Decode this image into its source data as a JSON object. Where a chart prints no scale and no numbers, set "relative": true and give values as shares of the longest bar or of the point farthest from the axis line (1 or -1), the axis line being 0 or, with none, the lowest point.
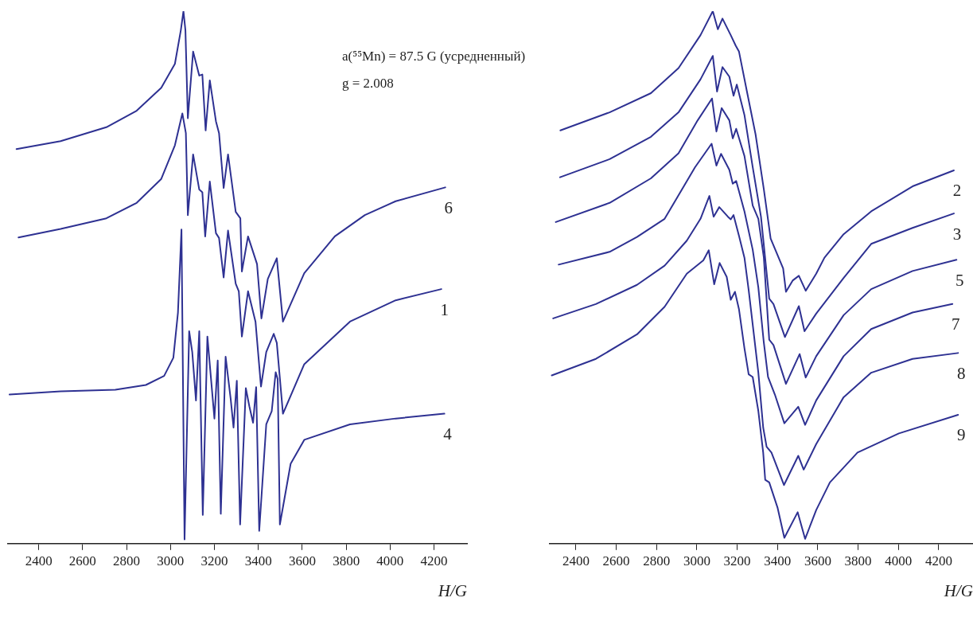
{
  "chart_data": [
    {
      "type": "line",
      "relative": true,
      "xlabel": "H/G",
      "xlim": [
        2260,
        4350
      ],
      "xticks": [
        2400,
        2600,
        2800,
        3000,
        3200,
        3400,
        3600,
        3800,
        4000,
        4200
      ],
      "annotations": [
        "a(⁵⁵Mn) = 87.5 G (усредненный)",
        "g = 2.008"
      ],
      "series": [
        {
          "name": "6",
          "color": "#2e3192",
          "x": [
            2299,
            2500,
            2708,
            2846,
            2958,
            3020,
            3047,
            3059,
            3068,
            3079,
            3103,
            3131,
            3145,
            3160,
            3179,
            3207,
            3221,
            3242,
            3262,
            3297,
            3318,
            3325,
            3353,
            3394,
            3414,
            3443,
            3484,
            3512,
            3609,
            3748,
            3885,
            4025,
            4251
          ],
          "values": [
            0.741,
            0.756,
            0.782,
            0.813,
            0.856,
            0.901,
            0.964,
            1,
            0.964,
            0.799,
            0.924,
            0.879,
            0.881,
            0.776,
            0.87,
            0.793,
            0.771,
            0.668,
            0.731,
            0.623,
            0.611,
            0.511,
            0.577,
            0.525,
            0.423,
            0.497,
            0.536,
            0.417,
            0.508,
            0.577,
            0.617,
            0.643,
            0.669
          ]
        },
        {
          "name": "1",
          "color": "#2e3192",
          "x": [
            2308,
            2500,
            2708,
            2846,
            2958,
            3020,
            3054,
            3070,
            3079,
            3103,
            3131,
            3145,
            3158,
            3179,
            3207,
            3221,
            3242,
            3262,
            3297,
            3311,
            3325,
            3353,
            3387,
            3412,
            3436,
            3470,
            3484,
            3512,
            3609,
            3817,
            4025,
            4233
          ],
          "values": [
            0.575,
            0.591,
            0.611,
            0.64,
            0.685,
            0.748,
            0.808,
            0.771,
            0.617,
            0.731,
            0.665,
            0.66,
            0.577,
            0.68,
            0.583,
            0.574,
            0.5,
            0.588,
            0.488,
            0.474,
            0.389,
            0.474,
            0.417,
            0.295,
            0.36,
            0.394,
            0.377,
            0.244,
            0.337,
            0.417,
            0.457,
            0.478
          ]
        },
        {
          "name": "4",
          "color": "#2e3192",
          "x": [
            2267,
            2500,
            2749,
            2888,
            2971,
            3013,
            3034,
            3050,
            3064,
            3085,
            3099,
            3116,
            3131,
            3147,
            3168,
            3200,
            3215,
            3229,
            3251,
            3274,
            3287,
            3302,
            3317,
            3343,
            3359,
            3376,
            3390,
            3404,
            3436,
            3461,
            3479,
            3488,
            3498,
            3547,
            3609,
            3817,
            4025,
            4247
          ],
          "values": [
            0.28,
            0.286,
            0.289,
            0.298,
            0.315,
            0.349,
            0.434,
            0.59,
            0.008,
            0.399,
            0.36,
            0.269,
            0.399,
            0.054,
            0.389,
            0.235,
            0.344,
            0.056,
            0.351,
            0.272,
            0.218,
            0.306,
            0.036,
            0.292,
            0.258,
            0.227,
            0.294,
            0.024,
            0.224,
            0.249,
            0.322,
            0.309,
            0.036,
            0.15,
            0.195,
            0.224,
            0.235,
            0.244
          ]
        }
      ]
    },
    {
      "type": "line",
      "relative": true,
      "xlabel": "H/G",
      "xlim": [
        2270,
        4370
      ],
      "xticks": [
        2400,
        2600,
        2800,
        3000,
        3200,
        3400,
        3600,
        3800,
        4000,
        4200
      ],
      "series": [
        {
          "name": "2",
          "color": "#2e3192",
          "x": [
            2323,
            2567,
            2772,
            2909,
            3018,
            3079,
            3104,
            3127,
            3168,
            3193,
            3209,
            3250,
            3291,
            3332,
            3366,
            3428,
            3442,
            3475,
            3506,
            3540,
            3592,
            3633,
            3728,
            3865,
            4070,
            4275
          ],
          "values": [
            0.776,
            0.81,
            0.846,
            0.893,
            0.955,
            1,
            0.966,
            0.986,
            0.955,
            0.935,
            0.924,
            0.846,
            0.769,
            0.666,
            0.573,
            0.517,
            0.473,
            0.494,
            0.503,
            0.475,
            0.507,
            0.537,
            0.581,
            0.624,
            0.671,
            0.701
          ]
        },
        {
          "name": "3",
          "color": "#2e3192",
          "x": [
            2321,
            2567,
            2772,
            2909,
            3018,
            3079,
            3100,
            3127,
            3161,
            3182,
            3198,
            3236,
            3277,
            3318,
            3359,
            3380,
            3437,
            3506,
            3534,
            3592,
            3728,
            3865,
            4070,
            4275
          ],
          "values": [
            0.688,
            0.722,
            0.764,
            0.81,
            0.872,
            0.916,
            0.849,
            0.895,
            0.877,
            0.841,
            0.862,
            0.805,
            0.707,
            0.614,
            0.46,
            0.45,
            0.388,
            0.446,
            0.399,
            0.432,
            0.499,
            0.563,
            0.593,
            0.62
          ]
        },
        {
          "name": "5",
          "color": "#2e3192",
          "x": [
            2300,
            2567,
            2772,
            2909,
            3004,
            3075,
            3097,
            3123,
            3161,
            3178,
            3195,
            3236,
            3277,
            3305,
            3332,
            3359,
            3380,
            3442,
            3510,
            3540,
            3592,
            3728,
            3865,
            4070,
            4288
          ],
          "values": [
            0.604,
            0.64,
            0.686,
            0.733,
            0.795,
            0.836,
            0.774,
            0.818,
            0.795,
            0.761,
            0.779,
            0.728,
            0.635,
            0.61,
            0.538,
            0.383,
            0.373,
            0.3,
            0.356,
            0.312,
            0.352,
            0.429,
            0.478,
            0.512,
            0.533
          ]
        },
        {
          "name": "7",
          "color": "#2e3192",
          "x": [
            2314,
            2567,
            2703,
            2840,
            2991,
            3073,
            3097,
            3120,
            3161,
            3178,
            3195,
            3236,
            3277,
            3305,
            3332,
            3353,
            3387,
            3434,
            3503,
            3537,
            3592,
            3728,
            3865,
            4070,
            4268
          ],
          "values": [
            0.524,
            0.548,
            0.576,
            0.61,
            0.707,
            0.751,
            0.71,
            0.732,
            0.702,
            0.676,
            0.681,
            0.624,
            0.552,
            0.481,
            0.378,
            0.313,
            0.28,
            0.226,
            0.257,
            0.223,
            0.269,
            0.352,
            0.403,
            0.434,
            0.45
          ]
        },
        {
          "name": "8",
          "color": "#2e3192",
          "x": [
            2287,
            2499,
            2703,
            2840,
            2950,
            3018,
            3062,
            3083,
            3111,
            3154,
            3168,
            3182,
            3209,
            3236,
            3257,
            3305,
            3329,
            3346,
            3370,
            3432,
            3503,
            3530,
            3592,
            3728,
            3865,
            4070,
            4296
          ],
          "values": [
            0.423,
            0.45,
            0.486,
            0.522,
            0.569,
            0.61,
            0.653,
            0.614,
            0.632,
            0.614,
            0.609,
            0.617,
            0.578,
            0.537,
            0.476,
            0.321,
            0.218,
            0.182,
            0.171,
            0.11,
            0.165,
            0.139,
            0.187,
            0.275,
            0.321,
            0.347,
            0.358
          ]
        },
        {
          "name": "9",
          "color": "#2e3192",
          "x": [
            2280,
            2499,
            2703,
            2840,
            2950,
            3032,
            3059,
            3086,
            3113,
            3148,
            3168,
            3189,
            3209,
            3236,
            3257,
            3277,
            3305,
            3329,
            3339,
            3359,
            3400,
            3434,
            3500,
            3537,
            3592,
            3660,
            3797,
            4002,
            4296
          ],
          "values": [
            0.316,
            0.347,
            0.393,
            0.445,
            0.507,
            0.532,
            0.551,
            0.487,
            0.527,
            0.501,
            0.458,
            0.473,
            0.44,
            0.367,
            0.318,
            0.313,
            0.249,
            0.171,
            0.12,
            0.115,
            0.068,
            0.011,
            0.059,
            0.009,
            0.063,
            0.115,
            0.171,
            0.207,
            0.242
          ]
        }
      ]
    }
  ]
}
